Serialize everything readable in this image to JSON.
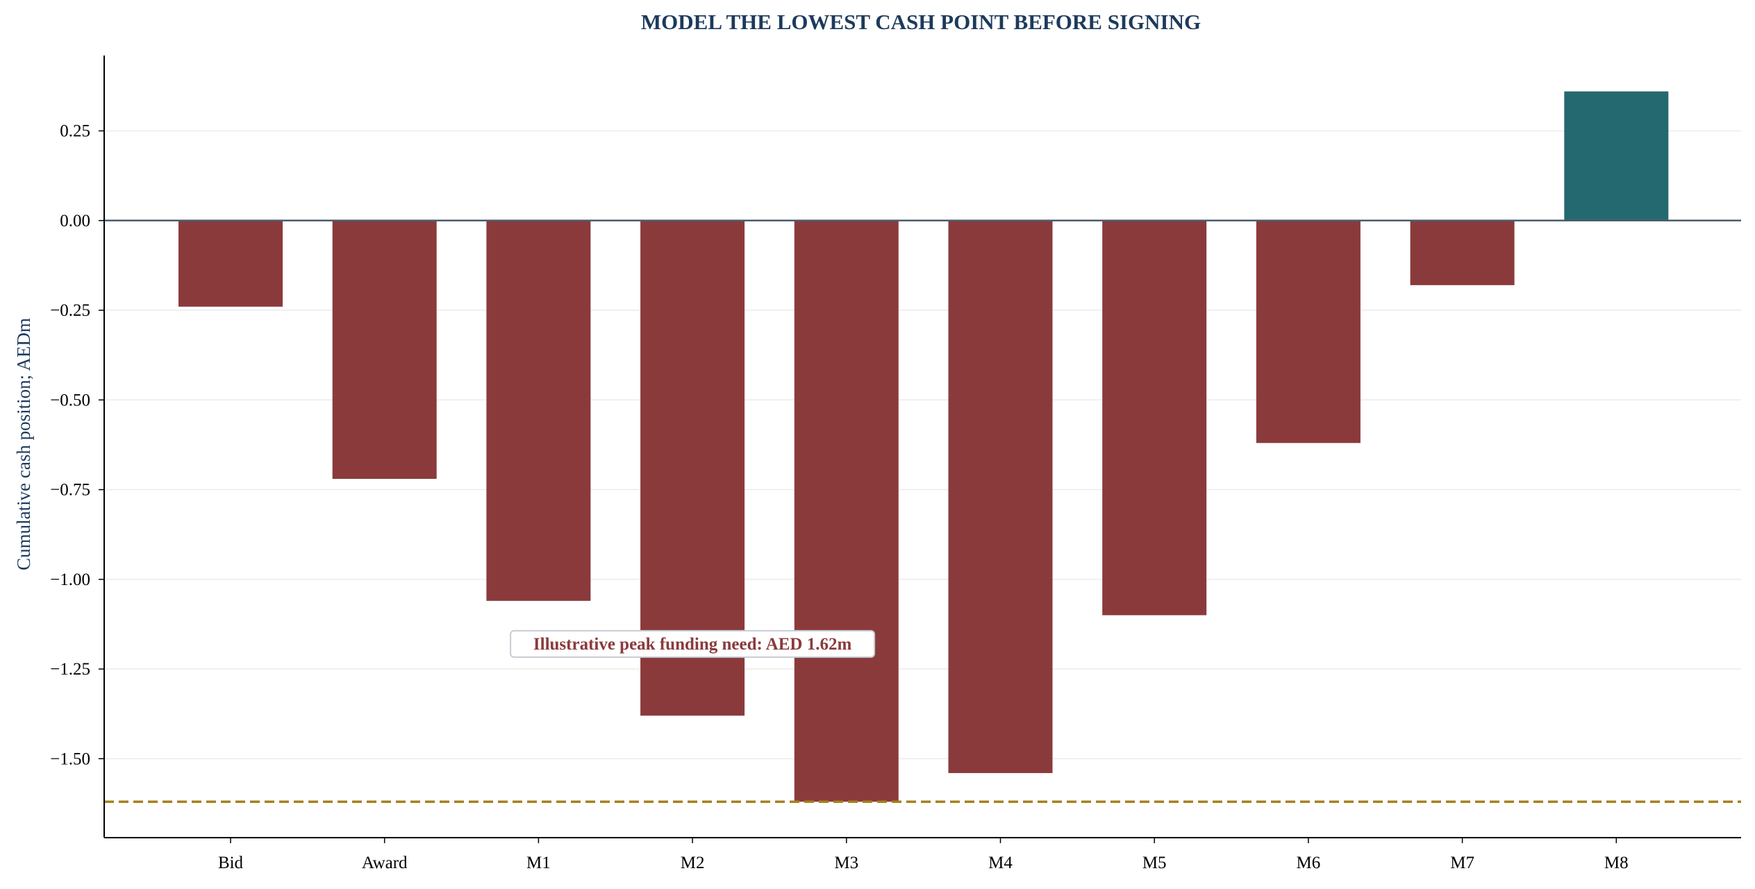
{
  "chart_data": {
    "type": "bar",
    "title": "MODEL THE LOWEST CASH POINT BEFORE SIGNING",
    "xlabel": "",
    "ylabel": "Cumulative cash position; AEDm",
    "categories": [
      "Bid",
      "Award",
      "M1",
      "M2",
      "M3",
      "M4",
      "M5",
      "M6",
      "M7",
      "M8"
    ],
    "values": [
      -0.24,
      -0.72,
      -1.06,
      -1.38,
      -1.62,
      -1.54,
      -1.1,
      -0.62,
      -0.18,
      0.36
    ],
    "ylim": [
      -1.72,
      0.46
    ],
    "yticks": [
      0.25,
      0.0,
      -0.25,
      -0.5,
      -0.75,
      -1.0,
      -1.25,
      -1.5
    ],
    "ytick_labels": [
      "0.25",
      "0.00",
      "−0.25",
      "−0.50",
      "−0.75",
      "−1.00",
      "−1.25",
      "−1.50"
    ],
    "grid": "horizontal",
    "legend": "none",
    "reference_line": {
      "value": -1.62,
      "style": "dashed"
    },
    "annotation": {
      "text": "Illustrative peak funding need: AED 1.62m",
      "x": 3,
      "y": -1.18
    },
    "colors": {
      "negative": "#8b3a3c",
      "positive": "#246870",
      "title": "#1d3a5c",
      "ylabel": "#1d3a5c",
      "zero_line": "#4a5c6e",
      "reference_line": "#a8801e",
      "annotation_text": "#8b3a3c",
      "annotation_border": "#c8ccd4",
      "grid": "#ebebeb"
    }
  }
}
